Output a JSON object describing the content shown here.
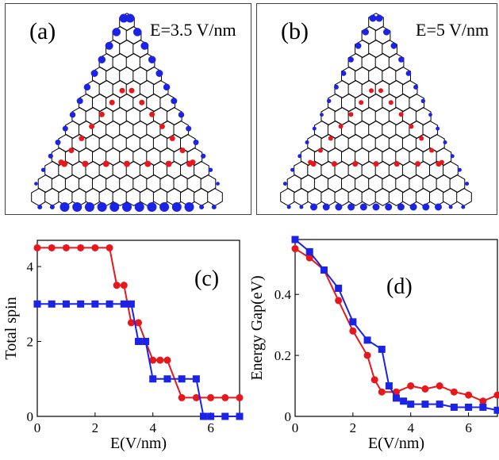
{
  "panels": {
    "a": {
      "label": "(a)",
      "field": "E=3.5 V/nm"
    },
    "b": {
      "label": "(b)",
      "field": "E=5 V/nm"
    }
  },
  "colors": {
    "red": "#e8171c",
    "blue": "#1a23e6",
    "lattice": "#000000"
  },
  "chart_data": [
    {
      "type": "line",
      "panel_label": "(c)",
      "xlabel": "E(V/nm)",
      "ylabel": "Total spin",
      "xlim": [
        0,
        7
      ],
      "ylim": [
        0,
        4.7
      ],
      "xticks": [
        0,
        2,
        4,
        6
      ],
      "yticks": [
        0,
        2,
        4
      ],
      "series": [
        {
          "color": "#e8171c",
          "marker": "circle",
          "x": [
            0,
            0.5,
            1,
            1.5,
            2,
            2.5,
            2.75,
            3,
            3.25,
            3.5,
            3.75,
            4,
            4.25,
            4.5,
            5,
            5.5,
            6,
            6.5,
            7
          ],
          "y": [
            4.5,
            4.5,
            4.5,
            4.5,
            4.5,
            4.5,
            3.5,
            3.5,
            2.5,
            2.5,
            2,
            1.5,
            1.5,
            1.5,
            0.5,
            0.5,
            0.5,
            0.5,
            0.5
          ]
        },
        {
          "color": "#1a23e6",
          "marker": "square",
          "x": [
            0,
            0.5,
            1,
            1.5,
            2,
            2.5,
            3,
            3.25,
            3.5,
            3.75,
            4,
            4.5,
            5,
            5.5,
            5.75,
            6,
            6.5,
            7
          ],
          "y": [
            3,
            3,
            3,
            3,
            3,
            3,
            3,
            3,
            2,
            2,
            1,
            1,
            1,
            1,
            0,
            0,
            0,
            0
          ]
        }
      ]
    },
    {
      "type": "line",
      "panel_label": "(d)",
      "xlabel": "E(V/nm)",
      "ylabel": "Energy Gap(eV)",
      "xlim": [
        0,
        7
      ],
      "ylim": [
        0,
        0.58
      ],
      "xticks": [
        0,
        2,
        4,
        6
      ],
      "yticks": [
        0,
        0.2,
        0.4
      ],
      "series": [
        {
          "color": "#e8171c",
          "marker": "circle",
          "x": [
            0,
            0.5,
            1,
            1.5,
            2,
            2.5,
            2.75,
            3,
            3.5,
            4,
            4.5,
            5,
            5.5,
            6,
            6.5,
            7
          ],
          "y": [
            0.55,
            0.52,
            0.48,
            0.38,
            0.28,
            0.2,
            0.12,
            0.08,
            0.08,
            0.1,
            0.09,
            0.1,
            0.08,
            0.07,
            0.05,
            0.07
          ]
        },
        {
          "color": "#1a23e6",
          "marker": "square",
          "x": [
            0,
            0.5,
            1,
            1.5,
            2,
            2.5,
            3,
            3.25,
            3.5,
            3.75,
            4,
            4.5,
            5,
            5.5,
            6,
            6.5,
            7
          ],
          "y": [
            0.58,
            0.54,
            0.48,
            0.42,
            0.31,
            0.25,
            0.22,
            0.1,
            0.06,
            0.05,
            0.04,
            0.04,
            0.04,
            0.03,
            0.03,
            0.03,
            0.02
          ]
        }
      ]
    }
  ]
}
